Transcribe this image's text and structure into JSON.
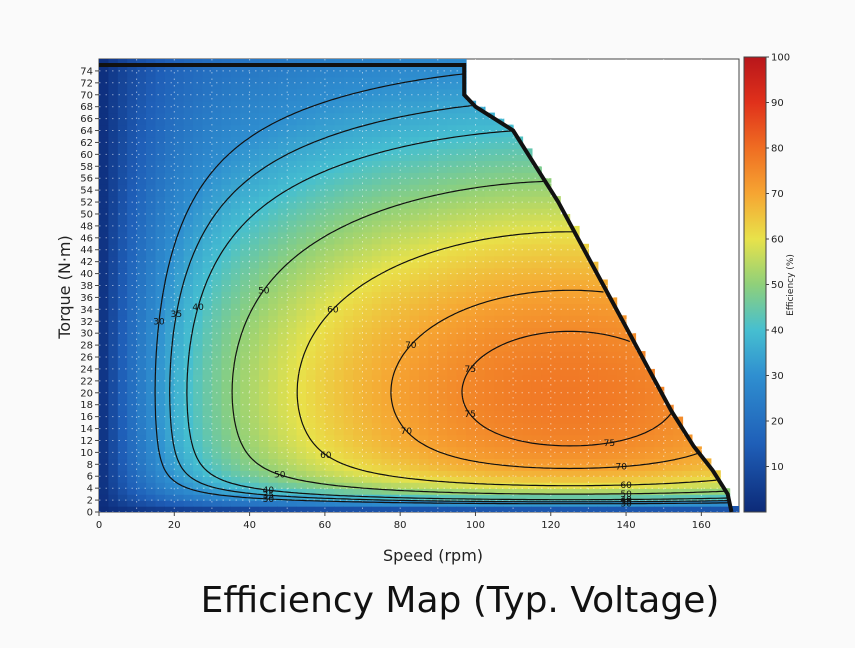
{
  "caption": "Efficiency Map (Typ. Voltage)",
  "chart_data": {
    "type": "heatmap",
    "xlabel": "Speed (rpm)",
    "ylabel": "Torque (N·m)",
    "xlim": [
      0,
      170
    ],
    "ylim": [
      0,
      76
    ],
    "x_ticks": [
      0,
      20,
      40,
      60,
      80,
      100,
      120,
      140,
      160
    ],
    "y_ticks": [
      0,
      2,
      4,
      6,
      8,
      10,
      12,
      14,
      16,
      18,
      20,
      22,
      24,
      26,
      28,
      30,
      32,
      34,
      36,
      38,
      40,
      42,
      44,
      46,
      48,
      50,
      52,
      54,
      56,
      58,
      60,
      62,
      64,
      66,
      68,
      70,
      72,
      74
    ],
    "colorbar": {
      "label": "Efficiency (%)",
      "range": [
        0,
        100
      ],
      "ticks": [
        10,
        20,
        30,
        40,
        50,
        60,
        70,
        80,
        90,
        100
      ]
    },
    "boundary_max_torque": [
      [
        0,
        75
      ],
      [
        97,
        75
      ],
      [
        97,
        70
      ],
      [
        100,
        68
      ],
      [
        110,
        64
      ],
      [
        116,
        58
      ],
      [
        122,
        52
      ],
      [
        128,
        45
      ],
      [
        134,
        38
      ],
      [
        140,
        31
      ],
      [
        146,
        24
      ],
      [
        152,
        17
      ],
      [
        158,
        11
      ],
      [
        163,
        7
      ],
      [
        167,
        3
      ],
      [
        168,
        0
      ]
    ],
    "contour_levels": [
      30,
      35,
      40,
      50,
      60,
      70,
      75
    ],
    "contour_labels": [
      "30",
      "35",
      "40",
      "50",
      "60",
      "70",
      "75"
    ],
    "peak_efficiency": 78,
    "peak_location": {
      "speed": 125,
      "torque": 20
    },
    "grid": true
  }
}
